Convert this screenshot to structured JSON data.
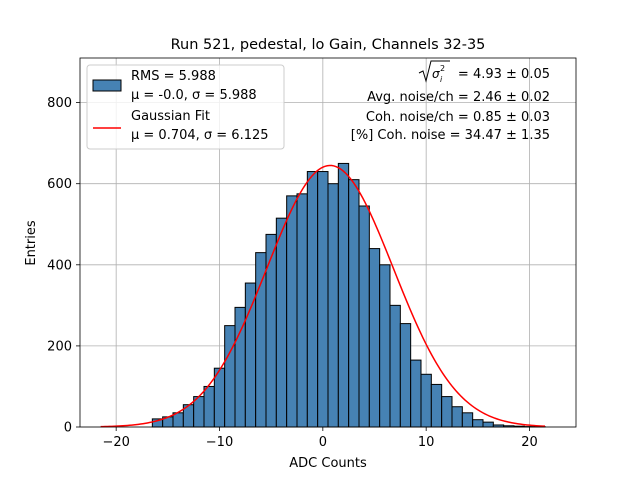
{
  "chart_data": {
    "type": "bar",
    "title": "Run 521, pedestal, lo Gain, Channels 32-35",
    "xlabel": "ADC Counts",
    "ylabel": "Entries",
    "xlim": [
      -23.5,
      24.5
    ],
    "ylim": [
      0,
      910
    ],
    "xticks": [
      -20,
      -10,
      0,
      10,
      20
    ],
    "yticks": [
      0,
      200,
      400,
      600,
      800
    ],
    "grid": true,
    "bin_width": 1,
    "bin_centers": [
      -16,
      -15,
      -14,
      -13,
      -12,
      -11,
      -10,
      -9,
      -8,
      -7,
      -6,
      -5,
      -4,
      -3,
      -2,
      -1,
      0,
      1,
      2,
      3,
      4,
      5,
      6,
      7,
      8,
      9,
      10,
      11,
      12,
      13,
      14,
      15,
      16,
      17,
      18,
      19,
      20,
      21
    ],
    "counts": [
      20,
      25,
      35,
      55,
      75,
      100,
      145,
      250,
      295,
      355,
      430,
      475,
      515,
      570,
      575,
      630,
      630,
      600,
      650,
      610,
      545,
      440,
      400,
      300,
      255,
      165,
      130,
      105,
      75,
      50,
      35,
      18,
      12,
      5,
      3,
      2,
      1,
      1
    ],
    "fit": {
      "name": "Gaussian Fit",
      "mu": 0.704,
      "sigma": 6.125,
      "amplitude": 645,
      "x_range": [
        -21.5,
        21.5
      ],
      "color": "#ff0000"
    },
    "bar_color": "#4682b4",
    "bar_edge_color": "#000000",
    "legend": {
      "placement": "top-left",
      "entries": [
        {
          "label_line1": "RMS = 5.988",
          "label_line2": "μ = -0.0, σ = 5.988",
          "symbol": "patch"
        },
        {
          "label_line1": "Gaussian Fit",
          "label_line2": "μ = 0.704, σ = 6.125",
          "symbol": "line"
        }
      ]
    },
    "annotations": {
      "sigma_line": "= 4.93 ± 0.05",
      "avg_noise": "Avg. noise/ch = 2.46 ± 0.02",
      "coh_noise": "Coh. noise/ch = 0.85 ± 0.03",
      "pct_coh": "[%] Coh. noise = 34.47 ± 1.35"
    }
  }
}
